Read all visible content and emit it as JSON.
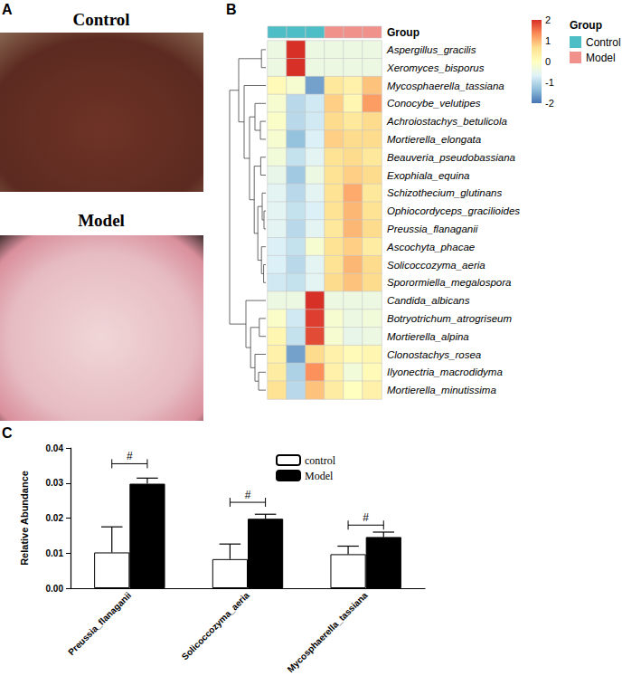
{
  "panel_labels": [
    "A",
    "B",
    "C"
  ],
  "photos": [
    {
      "title": "Control"
    },
    {
      "title": "Model"
    }
  ],
  "chart_data": [
    {
      "type": "heatmap",
      "rows": [
        "Aspergillus_gracilis",
        "Xeromyces_bisporus",
        "Mycosphaerella_tassiana",
        "Conocybe_velutipes",
        "Achroiostachys_betulicola",
        "Mortierella_elongata",
        "Beauveria_pseudobassiana",
        "Exophiala_equina",
        "Schizothecium_glutinans",
        "Ophiocordyceps_gracilioides",
        "Preussia_flanaganii",
        "Ascochyta_phacae",
        "Solicoccozyma_aeria",
        "Sporormiella_megalospora",
        "Candida_albicans",
        "Botryotrichum_atrogriseum",
        "Mortierella_alpina",
        "Clonostachys_rosea",
        "Ilyonectria_macrodidyma",
        "Mortierella_minutissima"
      ],
      "group_title": "Group",
      "groups": [
        {
          "name": "Control",
          "color": "#4dbec6"
        },
        {
          "name": "Model",
          "color": "#f1918c"
        }
      ],
      "column_groups": [
        "Control",
        "Control",
        "Control",
        "Model",
        "Model",
        "Model"
      ],
      "cells": [
        [
          -0.41,
          2.04,
          -0.41,
          -0.41,
          -0.41,
          -0.41
        ],
        [
          -0.41,
          2.04,
          -0.41,
          -0.41,
          -0.41,
          -0.41
        ],
        [
          0.1,
          -0.2,
          -1.6,
          0.5,
          0.3,
          0.9
        ],
        [
          -0.2,
          -1.0,
          -0.8,
          0.8,
          0.2,
          1.2
        ],
        [
          -0.1,
          -1.0,
          -0.8,
          0.7,
          0.5,
          0.7
        ],
        [
          -0.2,
          -1.3,
          -0.7,
          0.8,
          0.7,
          0.7
        ],
        [
          -0.3,
          -0.9,
          -0.6,
          0.6,
          0.7,
          0.5
        ],
        [
          -0.5,
          -1.2,
          -0.4,
          0.6,
          0.8,
          0.7
        ],
        [
          -0.6,
          -1.0,
          -0.6,
          0.6,
          1.1,
          0.5
        ],
        [
          -0.6,
          -0.9,
          -0.7,
          0.6,
          1.0,
          0.6
        ],
        [
          -0.6,
          -1.0,
          -0.6,
          0.5,
          1.0,
          0.7
        ],
        [
          -0.7,
          -0.9,
          -0.2,
          0.6,
          0.8,
          0.4
        ],
        [
          -0.7,
          -1.0,
          -0.6,
          0.6,
          1.0,
          0.7
        ],
        [
          -0.8,
          -0.9,
          -0.6,
          0.7,
          0.9,
          0.7
        ],
        [
          -0.41,
          -0.41,
          2.04,
          -0.41,
          -0.41,
          -0.41
        ],
        [
          -0.1,
          -0.8,
          1.9,
          -0.2,
          -0.4,
          -0.3
        ],
        [
          0.2,
          -0.9,
          1.8,
          -0.2,
          -0.5,
          -0.4
        ],
        [
          0.3,
          -1.6,
          0.7,
          0.3,
          0.1,
          0.2
        ],
        [
          0.4,
          -1.1,
          1.3,
          0.3,
          -0.3,
          0.1
        ],
        [
          0.6,
          -1.0,
          0.9,
          0.4,
          0.0,
          0.3
        ]
      ],
      "colorbar": {
        "range": [
          -2,
          2
        ],
        "ticks": [
          2,
          1,
          0,
          -1,
          -2
        ]
      },
      "dendrogram": {
        "height": 1,
        "children": [
          {
            "height": 0.75,
            "children": [
              {
                "height": 0.12,
                "children": [
                  0,
                  1
                ]
              },
              {
                "height": 0.6,
                "children": [
                  2,
                  {
                    "height": 0.45,
                    "children": [
                      {
                        "height": 0.3,
                        "children": [
                          3,
                          {
                            "height": 0.15,
                            "children": [
                              4,
                              5
                            ]
                          }
                        ]
                      },
                      {
                        "height": 0.32,
                        "children": [
                          {
                            "height": 0.14,
                            "children": [
                              6,
                              7
                            ]
                          },
                          {
                            "height": 0.22,
                            "children": [
                              {
                                "height": 0.1,
                                "children": [
                                  8,
                                  {
                                    "height": 0.05,
                                    "children": [
                                      9,
                                      10
                                    ]
                                  }
                                ]
                              },
                              {
                                "height": 0.12,
                                "children": [
                                  11,
                                  {
                                    "height": 0.06,
                                    "children": [
                                      12,
                                      13
                                    ]
                                  }
                                ]
                              }
                            ]
                          }
                        ]
                      }
                    ]
                  }
                ]
              }
            ]
          },
          {
            "height": 0.55,
            "children": [
              14,
              {
                "height": 0.42,
                "children": [
                  {
                    "height": 0.18,
                    "children": [
                      15,
                      16
                    ]
                  },
                  {
                    "height": 0.3,
                    "children": [
                      17,
                      {
                        "height": 0.2,
                        "children": [
                          18,
                          19
                        ]
                      }
                    ]
                  }
                ]
              }
            ]
          }
        ]
      }
    },
    {
      "type": "bar",
      "categories": [
        "Preussia_flanaganii",
        "Solicoccozyma_aeria",
        "Mycosphaerella_tassiana"
      ],
      "series": [
        {
          "name": "control",
          "color": "#ffffff",
          "values": [
            0.0102,
            0.0083,
            0.0097
          ],
          "errors": [
            0.0073,
            0.0043,
            0.0023
          ]
        },
        {
          "name": "Model",
          "color": "#000000",
          "values": [
            0.0298,
            0.0198,
            0.0146
          ],
          "errors": [
            0.0016,
            0.0013,
            0.0014
          ]
        }
      ],
      "ylabel": "Relative Abundance",
      "ylim": [
        0,
        0.04
      ],
      "yticks": [
        {
          "value": 0,
          "label": "0.00"
        },
        {
          "value": 0.01,
          "label": "0.01"
        },
        {
          "value": 0.02,
          "label": "0.02"
        },
        {
          "value": 0.03,
          "label": "0.03"
        },
        {
          "value": 0.04,
          "label": "0.04"
        }
      ],
      "annotations": [
        {
          "category": "Preussia_flanaganii",
          "label": "#",
          "y": 0.0355
        },
        {
          "category": "Solicoccozyma_aeria",
          "label": "#",
          "y": 0.0245
        },
        {
          "category": "Mycosphaerella_tassiana",
          "label": "#",
          "y": 0.018
        }
      ],
      "legend": "top",
      "grid": false
    }
  ]
}
